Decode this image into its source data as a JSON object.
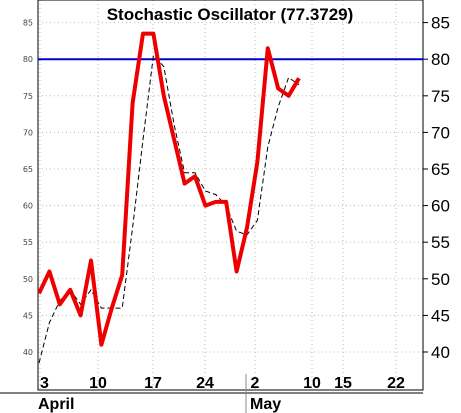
{
  "chart_data": {
    "type": "line",
    "title": "Stochastic Oscillator (77.3729)",
    "ylim": [
      38,
      89
    ],
    "ticks_left": [
      "40",
      "45",
      "50",
      "55",
      "60",
      "65",
      "70",
      "75",
      "80",
      "85"
    ],
    "ticks_right": [
      "40",
      "45",
      "50",
      "55",
      "60",
      "65",
      "70",
      "75",
      "80",
      "85"
    ],
    "x_ticks": [
      "3",
      "10",
      "17",
      "24",
      "2",
      "10",
      "15",
      "22"
    ],
    "months": [
      "April",
      "May"
    ],
    "reference_line": {
      "value": 80,
      "color": "#0000cc"
    },
    "series": [
      {
        "color": "#ee0000",
        "style": "thick",
        "values": [
          48.0,
          51.0,
          46.5,
          48.5,
          45.0,
          52.5,
          41.0,
          46.0,
          50.5,
          74.0,
          83.5,
          83.5,
          75.0,
          69.0,
          63.0,
          64.0,
          60.0,
          60.5,
          60.5,
          51.0,
          57.0,
          66.0,
          81.5,
          76.0,
          75.0,
          77.4
        ]
      },
      {
        "color": "#000000",
        "style": "dashed",
        "values": [
          38.5,
          44.0,
          47.0,
          48.5,
          46.5,
          48.5,
          46.0,
          46.0,
          46.0,
          57.0,
          69.0,
          80.5,
          79.0,
          71.0,
          64.5,
          64.5,
          62.0,
          61.5,
          60.0,
          56.5,
          56.0,
          58.0,
          68.0,
          73.5,
          77.5,
          76.5
        ]
      }
    ]
  }
}
